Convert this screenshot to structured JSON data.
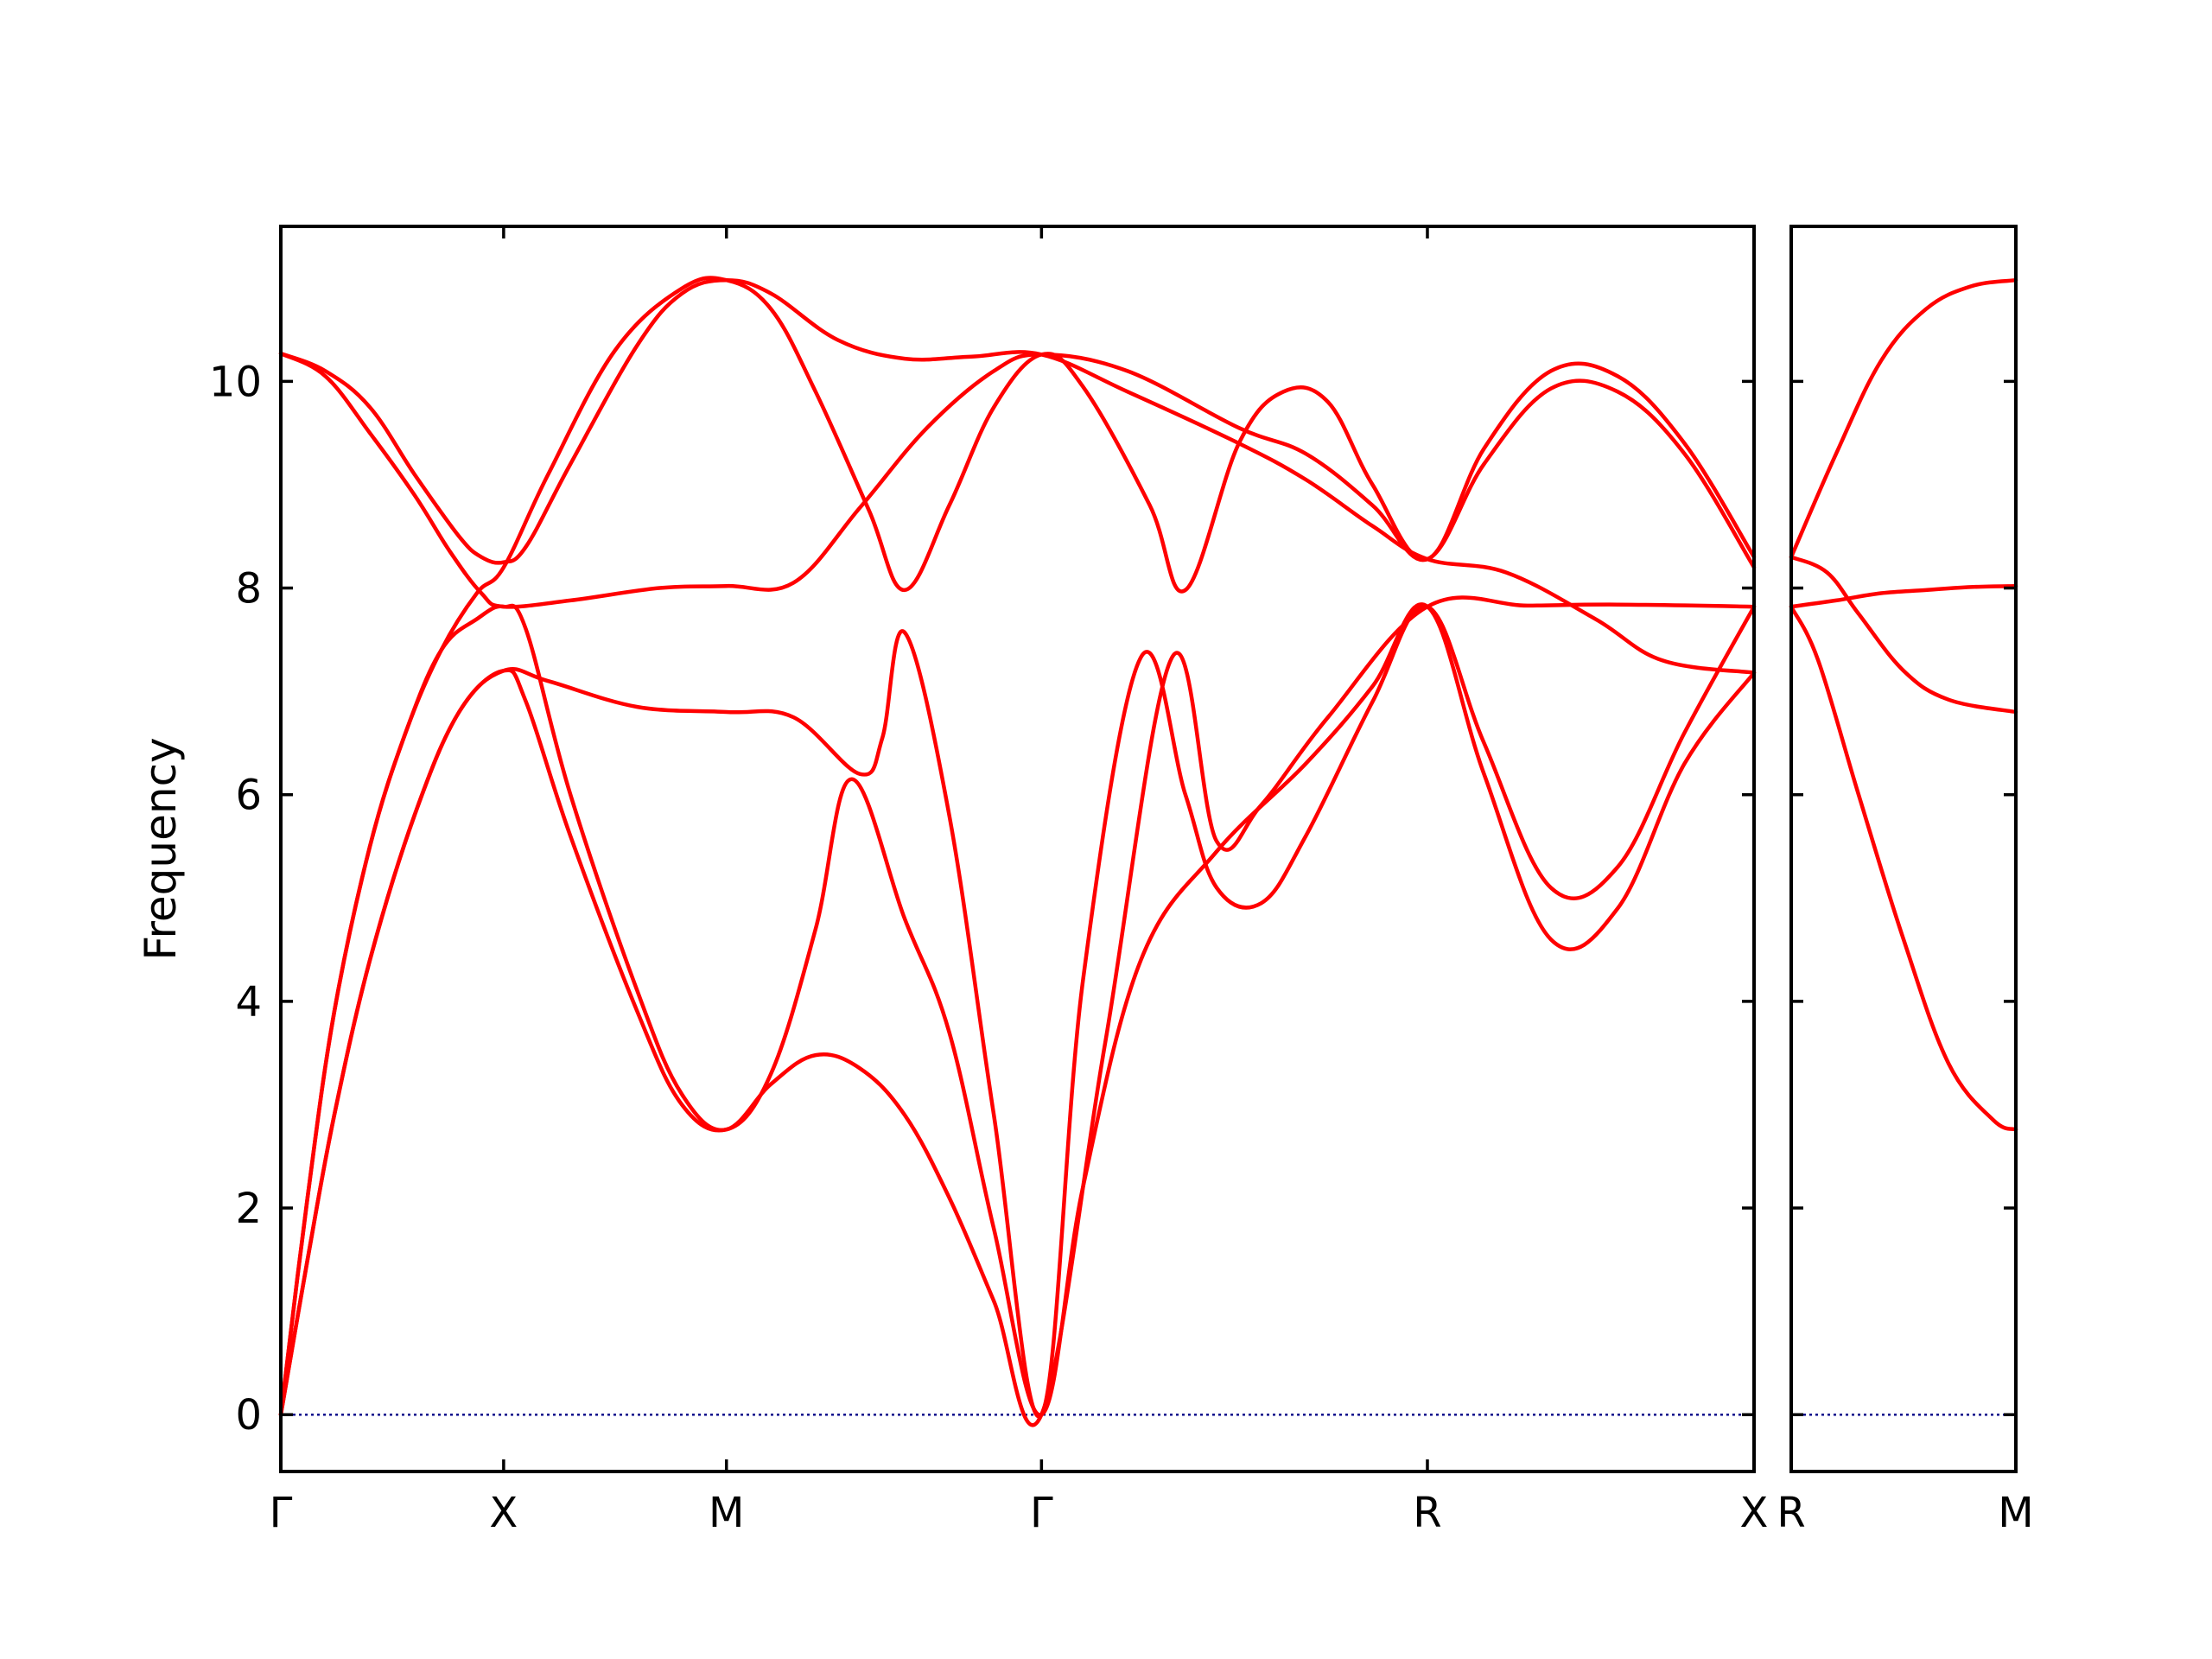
{
  "chart_data": {
    "type": "line",
    "title": "",
    "xlabel": "",
    "ylabel": "Frequency",
    "ylim": [
      -0.55,
      11.5
    ],
    "yticks": [
      0,
      2,
      4,
      6,
      8,
      10
    ],
    "grid": false,
    "legend": "none",
    "colors": {
      "bands": "#ff0000",
      "zero_line": "#00008b",
      "axes": "#000000"
    },
    "panels": [
      {
        "id": "main",
        "x_range": [
          0,
          3.306
        ],
        "high_symmetry_points": [
          {
            "label": "Γ",
            "x": 0
          },
          {
            "label": "X",
            "x": 0.5
          },
          {
            "label": "M",
            "x": 1.0
          },
          {
            "label": "Γ",
            "x": 1.707
          },
          {
            "label": "R",
            "x": 2.573
          },
          {
            "label": "X",
            "x": 3.306
          }
        ],
        "series": [
          {
            "values": [
              [
                0,
                10.27
              ],
              [
                0.1,
                10.1
              ],
              [
                0.2,
                9.75
              ],
              [
                0.3,
                9.1
              ],
              [
                0.4,
                8.5
              ],
              [
                0.45,
                8.3
              ],
              [
                0.5,
                8.25
              ],
              [
                0.55,
                8.4
              ],
              [
                0.65,
                9.2
              ],
              [
                0.8,
                10.35
              ],
              [
                0.9,
                10.85
              ],
              [
                1.0,
                10.98
              ],
              [
                1.1,
                10.85
              ],
              [
                1.25,
                10.4
              ],
              [
                1.4,
                10.22
              ],
              [
                1.55,
                10.24
              ],
              [
                1.707,
                10.26
              ],
              [
                1.9,
                9.9
              ],
              [
                2.15,
                9.4
              ],
              [
                2.3,
                9.05
              ],
              [
                2.45,
                8.6
              ],
              [
                2.573,
                8.28
              ],
              [
                2.75,
                8.15
              ],
              [
                2.95,
                7.7
              ],
              [
                3.1,
                7.3
              ],
              [
                3.306,
                7.18
              ]
            ]
          },
          {
            "values": [
              [
                0,
                10.27
              ],
              [
                0.1,
                10.05
              ],
              [
                0.2,
                9.5
              ],
              [
                0.3,
                8.9
              ],
              [
                0.38,
                8.35
              ],
              [
                0.45,
                7.95
              ],
              [
                0.5,
                7.82
              ],
              [
                0.65,
                7.88
              ],
              [
                0.85,
                8.0
              ],
              [
                1.0,
                8.02
              ],
              [
                1.15,
                8.05
              ],
              [
                1.3,
                8.78
              ],
              [
                1.45,
                9.55
              ],
              [
                1.6,
                10.1
              ],
              [
                1.707,
                10.26
              ],
              [
                1.9,
                10.1
              ],
              [
                2.15,
                9.55
              ],
              [
                2.3,
                9.3
              ],
              [
                2.45,
                8.8
              ],
              [
                2.573,
                8.28
              ],
              [
                2.7,
                9.2
              ],
              [
                2.85,
                9.93
              ],
              [
                3.0,
                9.9
              ],
              [
                3.15,
                9.3
              ],
              [
                3.306,
                8.2
              ]
            ]
          },
          {
            "values": [
              [
                0,
                0
              ],
              [
                0.06,
                2.1
              ],
              [
                0.12,
                3.9
              ],
              [
                0.2,
                5.5
              ],
              [
                0.28,
                6.6
              ],
              [
                0.36,
                7.4
              ],
              [
                0.44,
                7.95
              ],
              [
                0.5,
                8.2
              ],
              [
                0.6,
                9.1
              ],
              [
                0.75,
                10.3
              ],
              [
                0.9,
                10.9
              ],
              [
                1.0,
                10.98
              ],
              [
                1.1,
                10.7
              ],
              [
                1.2,
                9.9
              ],
              [
                1.32,
                8.75
              ],
              [
                1.4,
                7.98
              ],
              [
                1.5,
                8.8
              ],
              [
                1.6,
                9.75
              ],
              [
                1.707,
                10.26
              ],
              [
                1.8,
                9.95
              ],
              [
                1.95,
                8.8
              ],
              [
                2.03,
                7.98
              ],
              [
                2.15,
                9.4
              ],
              [
                2.25,
                9.9
              ],
              [
                2.35,
                9.8
              ],
              [
                2.45,
                9.0
              ],
              [
                2.573,
                8.28
              ],
              [
                2.7,
                9.35
              ],
              [
                2.85,
                10.1
              ],
              [
                3.0,
                10.05
              ],
              [
                3.15,
                9.4
              ],
              [
                3.306,
                8.3
              ]
            ]
          },
          {
            "values": [
              [
                0,
                0
              ],
              [
                0.06,
                1.5
              ],
              [
                0.12,
                2.9
              ],
              [
                0.2,
                4.4
              ],
              [
                0.3,
                5.8
              ],
              [
                0.4,
                6.8
              ],
              [
                0.5,
                7.2
              ],
              [
                0.6,
                7.1
              ],
              [
                0.8,
                6.85
              ],
              [
                1.0,
                6.8
              ],
              [
                1.15,
                6.75
              ],
              [
                1.3,
                6.2
              ],
              [
                1.35,
                6.55
              ],
              [
                1.4,
                7.57
              ],
              [
                1.5,
                5.8
              ],
              [
                1.6,
                2.9
              ],
              [
                1.707,
                0
              ],
              [
                1.8,
                4.2
              ],
              [
                1.93,
                7.33
              ],
              [
                2.03,
                6.0
              ],
              [
                2.1,
                5.1
              ],
              [
                2.2,
                4.95
              ],
              [
                2.3,
                5.6
              ],
              [
                2.45,
                6.9
              ],
              [
                2.573,
                7.82
              ],
              [
                2.7,
                6.5
              ],
              [
                2.85,
                5.1
              ],
              [
                3.0,
                5.3
              ],
              [
                3.15,
                6.6
              ],
              [
                3.306,
                7.82
              ]
            ]
          },
          {
            "values": [
              [
                0,
                0
              ],
              [
                0.06,
                2.1
              ],
              [
                0.12,
                3.9
              ],
              [
                0.2,
                5.5
              ],
              [
                0.28,
                6.6
              ],
              [
                0.36,
                7.4
              ],
              [
                0.44,
                7.7
              ],
              [
                0.5,
                7.82
              ],
              [
                0.55,
                7.6
              ],
              [
                0.65,
                6.0
              ],
              [
                0.8,
                4.1
              ],
              [
                0.9,
                3.1
              ],
              [
                1.0,
                2.76
              ],
              [
                1.1,
                3.3
              ],
              [
                1.2,
                4.7
              ],
              [
                1.28,
                6.15
              ],
              [
                1.4,
                4.8
              ],
              [
                1.5,
                3.7
              ],
              [
                1.6,
                1.8
              ],
              [
                1.707,
                0
              ],
              [
                1.8,
                2.2
              ],
              [
                1.93,
                4.4
              ],
              [
                2.1,
                5.45
              ],
              [
                2.3,
                6.3
              ],
              [
                2.45,
                7.05
              ],
              [
                2.573,
                7.82
              ],
              [
                2.7,
                6.2
              ],
              [
                2.85,
                4.6
              ],
              [
                3.0,
                4.9
              ],
              [
                3.15,
                6.3
              ],
              [
                3.306,
                7.18
              ]
            ]
          },
          {
            "values": [
              [
                0,
                0
              ],
              [
                0.06,
                1.5
              ],
              [
                0.12,
                2.9
              ],
              [
                0.2,
                4.4
              ],
              [
                0.3,
                5.8
              ],
              [
                0.4,
                6.8
              ],
              [
                0.5,
                7.2
              ],
              [
                0.55,
                6.9
              ],
              [
                0.65,
                5.6
              ],
              [
                0.8,
                3.9
              ],
              [
                0.9,
                3.0
              ],
              [
                1.0,
                2.76
              ],
              [
                1.1,
                3.2
              ],
              [
                1.2,
                3.48
              ],
              [
                1.3,
                3.35
              ],
              [
                1.4,
                2.9
              ],
              [
                1.5,
                2.1
              ],
              [
                1.6,
                1.1
              ],
              [
                1.707,
                0
              ],
              [
                1.85,
                3.6
              ],
              [
                2.0,
                7.33
              ],
              [
                2.1,
                5.55
              ],
              [
                2.2,
                5.9
              ],
              [
                2.35,
                6.75
              ],
              [
                2.573,
                7.82
              ],
              [
                2.8,
                7.83
              ],
              [
                3.0,
                7.84
              ],
              [
                3.306,
                7.82
              ]
            ]
          }
        ]
      },
      {
        "id": "right",
        "x_range": [
          0,
          0.5
        ],
        "high_symmetry_points": [
          {
            "label": "R",
            "x": 0
          },
          {
            "label": "M",
            "x": 0.5
          }
        ],
        "series": [
          {
            "values": [
              [
                0,
                8.3
              ],
              [
                0.1,
                9.3
              ],
              [
                0.2,
                10.2
              ],
              [
                0.3,
                10.7
              ],
              [
                0.4,
                10.92
              ],
              [
                0.5,
                10.98
              ]
            ]
          },
          {
            "values": [
              [
                0,
                8.3
              ],
              [
                0.08,
                8.15
              ],
              [
                0.15,
                7.75
              ],
              [
                0.25,
                7.2
              ],
              [
                0.35,
                6.92
              ],
              [
                0.5,
                6.8
              ]
            ]
          },
          {
            "values": [
              [
                0,
                7.82
              ],
              [
                0.1,
                7.88
              ],
              [
                0.2,
                7.95
              ],
              [
                0.3,
                7.98
              ],
              [
                0.4,
                8.01
              ],
              [
                0.5,
                8.02
              ]
            ]
          },
          {
            "values": [
              [
                0,
                7.82
              ],
              [
                0.06,
                7.3
              ],
              [
                0.15,
                6.0
              ],
              [
                0.25,
                4.6
              ],
              [
                0.35,
                3.4
              ],
              [
                0.45,
                2.85
              ],
              [
                0.5,
                2.76
              ]
            ]
          }
        ]
      }
    ]
  }
}
